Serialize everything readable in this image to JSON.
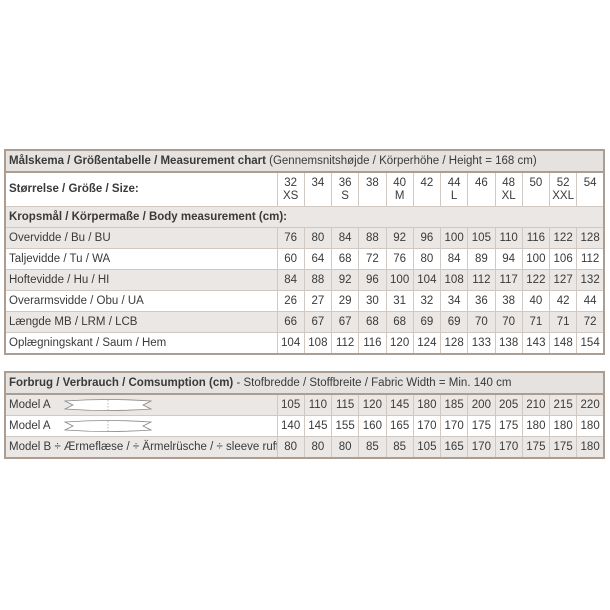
{
  "table1": {
    "title": "Målskema / Größentabelle / Measurement chart",
    "title_note": "(Gennemsnitshøjde / Körperhöhe / Height = 168 cm)",
    "size_label": "Størrelse / Größe / Size:",
    "sizes": [
      {
        "number": 32,
        "letter": "XS"
      },
      {
        "number": 34
      },
      {
        "number": 36,
        "letter": "S"
      },
      {
        "number": 38
      },
      {
        "number": 40,
        "letter": "M"
      },
      {
        "number": 42
      },
      {
        "number": 44,
        "letter": "L"
      },
      {
        "number": 46
      },
      {
        "number": 48,
        "letter": "XL"
      },
      {
        "number": 50
      },
      {
        "number": 52,
        "letter": "XXL"
      },
      {
        "number": 54
      }
    ],
    "section": "Kropsmål / Körpermaße / Body measurement (cm):",
    "rows": [
      {
        "label": "Overvidde / Bu / BU",
        "values": [
          76,
          80,
          84,
          88,
          92,
          96,
          100,
          105,
          110,
          116,
          122,
          128
        ]
      },
      {
        "label": "Taljevidde / Tu / WA",
        "values": [
          60,
          64,
          68,
          72,
          76,
          80,
          84,
          89,
          94,
          100,
          106,
          112
        ]
      },
      {
        "label": "Hoftevidde / Hu / HI",
        "values": [
          84,
          88,
          92,
          96,
          100,
          104,
          108,
          112,
          117,
          122,
          127,
          132
        ]
      },
      {
        "label": "Overarmsvidde / Obu / UA",
        "values": [
          26,
          27,
          29,
          30,
          31,
          32,
          34,
          36,
          38,
          40,
          42,
          44
        ]
      },
      {
        "label": "Længde MB / LRM / LCB",
        "values": [
          66,
          67,
          67,
          68,
          68,
          69,
          69,
          70,
          70,
          71,
          71,
          72
        ]
      },
      {
        "label": "Oplægningskant / Saum / Hem",
        "values": [
          104,
          108,
          112,
          116,
          120,
          124,
          128,
          133,
          138,
          143,
          148,
          154
        ]
      }
    ]
  },
  "table2": {
    "title": "Forbrug / Verbrauch / Comsumption (cm)",
    "title_note": "- Stofbredde / Stoffbreite / Fabric Width = Min. 140 cm",
    "rows": [
      {
        "label": "Model A",
        "values": [
          105,
          110,
          115,
          120,
          145,
          180,
          185,
          200,
          205,
          210,
          215,
          220
        ]
      },
      {
        "label": "Model A",
        "values": [
          140,
          145,
          155,
          160,
          165,
          170,
          170,
          175,
          175,
          180,
          180,
          180
        ]
      },
      {
        "label": "Model B ÷ Ærmeflæse / ÷ Ärmelrüsche / ÷ sleeve ruffle",
        "values": [
          80,
          80,
          80,
          85,
          85,
          105,
          165,
          170,
          170,
          175,
          175,
          180
        ]
      }
    ]
  }
}
